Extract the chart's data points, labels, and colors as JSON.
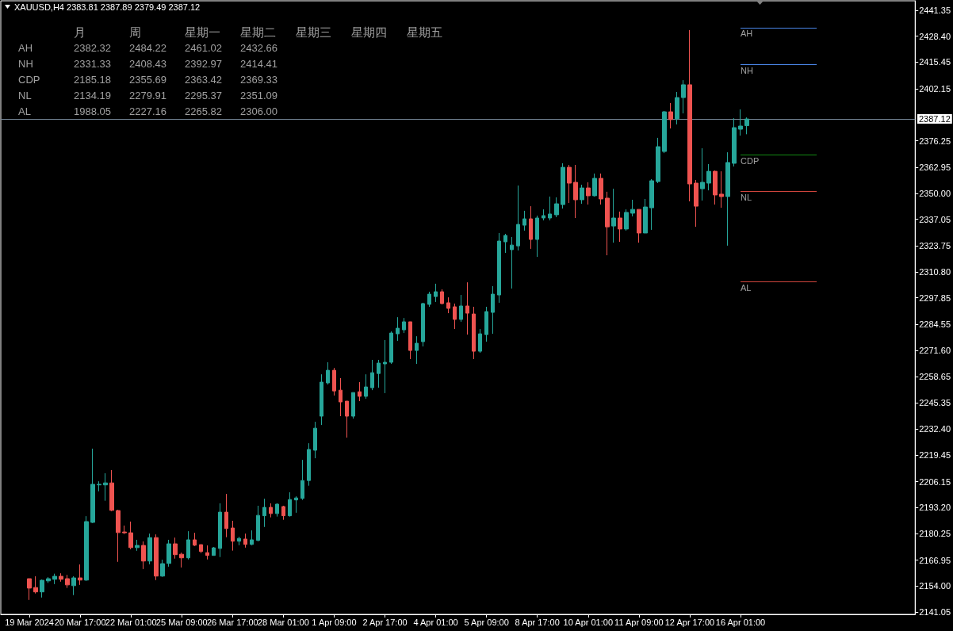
{
  "chart_data": {
    "type": "candlestick",
    "title": "XAUUSD,H4 2383.81 2387.89 2379.49 2387.12",
    "categories": [
      "19 Mar 2024",
      null,
      null,
      null,
      null,
      null,
      null,
      null,
      "20 Mar 17:00",
      null,
      null,
      null,
      null,
      null,
      null,
      null,
      "22 Mar 01:00",
      null,
      null,
      null,
      null,
      null,
      null,
      null,
      "25 Mar 09:00",
      null,
      null,
      null,
      null,
      null,
      null,
      null,
      "26 Mar 17:00",
      null,
      null,
      null,
      null,
      null,
      null,
      null,
      "28 Mar 01:00",
      null,
      null,
      null,
      null,
      null,
      null,
      null,
      "1 Apr 09:00",
      null,
      null,
      null,
      null,
      null,
      null,
      null,
      "2 Apr 17:00",
      null,
      null,
      null,
      null,
      null,
      null,
      null,
      "4 Apr 01:00",
      null,
      null,
      null,
      null,
      null,
      null,
      null,
      "5 Apr 09:00",
      null,
      null,
      null,
      null,
      null,
      null,
      null,
      "8 Apr 17:00",
      null,
      null,
      null,
      null,
      null,
      null,
      null,
      "10 Apr 01:00",
      null,
      null,
      null,
      null,
      null,
      null,
      null,
      "11 Apr 09:00",
      null,
      null,
      null,
      null,
      null,
      null,
      null,
      "12 Apr 17:00",
      null,
      null,
      null,
      null,
      null,
      null,
      null,
      "16 Apr 01:00",
      null,
      null,
      null,
      null,
      null,
      null,
      null,
      null,
      null,
      null,
      null,
      null,
      null,
      null,
      null,
      null,
      null,
      null,
      null,
      null,
      null,
      null,
      null,
      null,
      null,
      null,
      null
    ],
    "ohlc": [
      [
        2157.7,
        2157.7,
        2147.1,
        2153.0
      ],
      [
        2153.3,
        2158.9,
        2150.3,
        2151.1
      ],
      [
        2151.1,
        2157.3,
        2148.3,
        2156.9
      ],
      [
        2156.6,
        2158.5,
        2155.6,
        2157.7
      ],
      [
        2157.4,
        2160.2,
        2155.0,
        2158.9
      ],
      [
        2158.9,
        2160.4,
        2156.2,
        2157.4
      ],
      [
        2157.7,
        2159.6,
        2153.1,
        2154.6
      ],
      [
        2154.2,
        2158.9,
        2149.5,
        2158.1
      ],
      [
        2158.1,
        2164.8,
        2154.6,
        2157.0
      ],
      [
        2157.0,
        2188.9,
        2156.6,
        2186.2
      ],
      [
        2185.8,
        2222.6,
        2185.5,
        2204.8
      ],
      [
        2204.5,
        2206.3,
        2201.3,
        2204.8
      ],
      [
        2204.5,
        2210.3,
        2196.6,
        2205.5
      ],
      [
        2205.5,
        2211.9,
        2191.4,
        2191.8
      ],
      [
        2191.7,
        2192.1,
        2166.1,
        2180.7
      ],
      [
        2181.0,
        2184.2,
        2180.0,
        2180.6
      ],
      [
        2180.6,
        2186.2,
        2172.4,
        2173.2
      ],
      [
        2173.2,
        2177.1,
        2171.6,
        2174.3
      ],
      [
        2174.3,
        2176.3,
        2162.5,
        2166.5
      ],
      [
        2166.5,
        2180.2,
        2164.9,
        2178.2
      ],
      [
        2178.2,
        2179.8,
        2157.0,
        2159.0
      ],
      [
        2159.0,
        2167.2,
        2158.6,
        2165.2
      ],
      [
        2165.3,
        2177.1,
        2163.7,
        2175.1
      ],
      [
        2175.1,
        2178.2,
        2167.7,
        2169.7
      ],
      [
        2169.9,
        2170.7,
        2163.3,
        2168.1
      ],
      [
        2168.1,
        2181.4,
        2167.3,
        2177.1
      ],
      [
        2177.1,
        2180.6,
        2174.0,
        2174.4
      ],
      [
        2174.7,
        2174.7,
        2170.5,
        2171.3
      ],
      [
        2170.7,
        2174.3,
        2167.3,
        2169.3
      ],
      [
        2169.3,
        2173.5,
        2169.3,
        2173.1
      ],
      [
        2172.8,
        2195.3,
        2168.5,
        2190.9
      ],
      [
        2190.9,
        2200.0,
        2178.4,
        2182.7
      ],
      [
        2183.0,
        2186.6,
        2171.7,
        2176.4
      ],
      [
        2176.4,
        2178.6,
        2174.4,
        2177.8
      ],
      [
        2177.5,
        2180.2,
        2173.2,
        2174.8
      ],
      [
        2174.8,
        2181.8,
        2174.4,
        2177.1
      ],
      [
        2176.8,
        2194.1,
        2176.4,
        2189.3
      ],
      [
        2189.1,
        2197.6,
        2183.5,
        2193.3
      ],
      [
        2193.3,
        2195.3,
        2188.3,
        2190.2
      ],
      [
        2190.2,
        2195.3,
        2188.7,
        2194.9
      ],
      [
        2193.7,
        2194.1,
        2187.1,
        2189.1
      ],
      [
        2189.1,
        2200.8,
        2188.7,
        2197.2
      ],
      [
        2197.0,
        2198.8,
        2190.6,
        2198.0
      ],
      [
        2197.8,
        2217.0,
        2197.0,
        2206.7
      ],
      [
        2206.7,
        2225.3,
        2204.1,
        2222.2
      ],
      [
        2221.8,
        2236.0,
        2217.8,
        2232.8
      ],
      [
        2238.8,
        2259.7,
        2234.4,
        2255.8
      ],
      [
        2255.4,
        2265.7,
        2254.6,
        2261.7
      ],
      [
        2261.7,
        2262.9,
        2249.1,
        2251.4
      ],
      [
        2251.8,
        2257.8,
        2238.8,
        2245.9
      ],
      [
        2246.3,
        2246.3,
        2228.1,
        2238.8
      ],
      [
        2238.8,
        2250.6,
        2237.6,
        2250.6
      ],
      [
        2251.0,
        2255.8,
        2246.3,
        2248.7
      ],
      [
        2248.7,
        2259.7,
        2247.5,
        2253.4
      ],
      [
        2253.0,
        2266.9,
        2251.8,
        2260.5
      ],
      [
        2260.1,
        2266.9,
        2253.0,
        2265.3
      ],
      [
        2264.9,
        2276.8,
        2250.3,
        2265.7
      ],
      [
        2265.7,
        2281.1,
        2264.9,
        2280.3
      ],
      [
        2279.9,
        2288.2,
        2276.4,
        2282.7
      ],
      [
        2281.9,
        2287.8,
        2280.3,
        2285.9
      ],
      [
        2285.9,
        2285.9,
        2267.3,
        2271.6
      ],
      [
        2271.6,
        2278.7,
        2264.9,
        2275.2
      ],
      [
        2276.0,
        2295.4,
        2273.6,
        2295.0
      ],
      [
        2294.6,
        2300.9,
        2293.4,
        2299.7
      ],
      [
        2298.5,
        2304.9,
        2295.8,
        2300.9
      ],
      [
        2300.9,
        2302.1,
        2294.6,
        2295.0
      ],
      [
        2295.4,
        2298.1,
        2290.2,
        2292.6
      ],
      [
        2293.4,
        2295.0,
        2282.3,
        2287.1
      ],
      [
        2287.1,
        2299.3,
        2285.9,
        2293.8
      ],
      [
        2293.8,
        2305.6,
        2279.5,
        2290.2
      ],
      [
        2289.8,
        2293.4,
        2267.3,
        2271.2
      ],
      [
        2271.2,
        2282.3,
        2270.4,
        2279.9
      ],
      [
        2279.5,
        2293.4,
        2276.0,
        2291.0
      ],
      [
        2290.6,
        2303.7,
        2279.9,
        2299.7
      ],
      [
        2299.3,
        2330.2,
        2295.4,
        2326.2
      ],
      [
        2325.8,
        2329.8,
        2320.3,
        2329.0
      ],
      [
        2321.9,
        2328.2,
        2302.5,
        2324.2
      ],
      [
        2323.8,
        2353.9,
        2321.5,
        2334.5
      ],
      [
        2334.1,
        2341.3,
        2331.4,
        2337.3
      ],
      [
        2337.3,
        2343.6,
        2322.3,
        2327.0
      ],
      [
        2327.0,
        2338.9,
        2318.3,
        2337.7
      ],
      [
        2337.7,
        2342.0,
        2336.5,
        2338.9
      ],
      [
        2337.7,
        2348.4,
        2336.5,
        2339.7
      ],
      [
        2339.3,
        2348.0,
        2338.1,
        2344.8
      ],
      [
        2344.4,
        2365.0,
        2342.4,
        2363.0
      ],
      [
        2363.0,
        2364.2,
        2345.2,
        2355.1
      ],
      [
        2355.5,
        2364.2,
        2337.7,
        2346.8
      ],
      [
        2346.8,
        2354.3,
        2344.8,
        2352.7
      ],
      [
        2352.7,
        2355.5,
        2344.4,
        2348.8
      ],
      [
        2348.8,
        2359.9,
        2348.4,
        2357.5
      ],
      [
        2357.5,
        2359.9,
        2344.4,
        2347.2
      ],
      [
        2347.6,
        2350.8,
        2319.1,
        2333.3
      ],
      [
        2333.7,
        2352.3,
        2325.4,
        2337.7
      ],
      [
        2337.7,
        2340.9,
        2325.8,
        2332.2
      ],
      [
        2332.2,
        2342.0,
        2331.4,
        2340.5
      ],
      [
        2340.1,
        2346.8,
        2338.5,
        2342.0
      ],
      [
        2342.0,
        2342.0,
        2325.4,
        2330.2
      ],
      [
        2330.2,
        2347.2,
        2330.2,
        2343.2
      ],
      [
        2342.8,
        2357.1,
        2331.8,
        2356.3
      ],
      [
        2355.9,
        2377.7,
        2355.1,
        2373.3
      ],
      [
        2370.9,
        2391.1,
        2370.1,
        2390.7
      ],
      [
        2390.7,
        2395.1,
        2382.4,
        2386.8
      ],
      [
        2387.2,
        2400.6,
        2384.4,
        2397.8
      ],
      [
        2397.8,
        2406.5,
        2389.9,
        2404.2
      ],
      [
        2404.2,
        2431.5,
        2346.0,
        2354.7
      ],
      [
        2355.1,
        2356.7,
        2333.3,
        2343.6
      ],
      [
        2352.3,
        2372.5,
        2346.4,
        2355.5
      ],
      [
        2355.1,
        2364.6,
        2351.5,
        2361.0
      ],
      [
        2361.0,
        2361.4,
        2344.4,
        2349.2
      ],
      [
        2349.6,
        2361.0,
        2342.8,
        2348.4
      ],
      [
        2348.4,
        2370.5,
        2323.9,
        2365.4
      ],
      [
        2365.0,
        2387.5,
        2363.4,
        2382.8
      ],
      [
        2382.0,
        2391.9,
        2378.8,
        2383.6
      ],
      [
        2383.81,
        2387.89,
        2379.49,
        2387.12
      ],
      null,
      null,
      null,
      null,
      null,
      null,
      null,
      null,
      null,
      null,
      null,
      null,
      null,
      null,
      null,
      null,
      null,
      null,
      null,
      null,
      null,
      null,
      null,
      null,
      null,
      null
    ],
    "colors": [
      "#ef5350",
      "#ef5350",
      "#26a69a",
      "#26a69a",
      "#26a69a",
      "#ef5350",
      "#ef5350",
      "#26a69a",
      "#ef5350",
      "#26a69a",
      "#26a69a",
      "#26a69a",
      "#26a69a",
      "#ef5350",
      "#ef5350",
      "#ef5350",
      "#ef5350",
      "#26a69a",
      "#ef5350",
      "#26a69a",
      "#ef5350",
      "#26a69a",
      "#26a69a",
      "#ef5350",
      "#ef5350",
      "#26a69a",
      "#ef5350",
      "#ef5350",
      "#ef5350",
      "#26a69a",
      "#26a69a",
      "#ef5350",
      "#ef5350",
      "#26a69a",
      "#ef5350",
      "#26a69a",
      "#26a69a",
      "#26a69a",
      "#ef5350",
      "#26a69a",
      "#ef5350",
      "#26a69a",
      "#26a69a",
      "#26a69a",
      "#26a69a",
      "#26a69a",
      "#26a69a",
      "#26a69a",
      "#ef5350",
      "#ef5350",
      "#ef5350",
      "#26a69a",
      "#ef5350",
      "#26a69a",
      "#26a69a",
      "#26a69a",
      "#26a69a",
      "#26a69a",
      "#26a69a",
      "#26a69a",
      "#ef5350",
      "#26a69a",
      "#26a69a",
      "#26a69a",
      "#26a69a",
      "#ef5350",
      "#ef5350",
      "#ef5350",
      "#26a69a",
      "#ef5350",
      "#ef5350",
      "#26a69a",
      "#26a69a",
      "#26a69a",
      "#26a69a",
      "#26a69a",
      "#26a69a",
      "#26a69a",
      "#26a69a",
      "#ef5350",
      "#26a69a",
      "#26a69a",
      "#26a69a",
      "#26a69a",
      "#26a69a",
      "#ef5350",
      "#ef5350",
      "#26a69a",
      "#ef5350",
      "#26a69a",
      "#ef5350",
      "#ef5350",
      "#26a69a",
      "#ef5350",
      "#26a69a",
      "#26a69a",
      "#ef5350",
      "#26a69a",
      "#26a69a",
      "#26a69a",
      "#26a69a",
      "#ef5350",
      "#26a69a",
      "#26a69a",
      "#ef5350",
      "#ef5350",
      "#26a69a",
      "#26a69a",
      "#ef5350",
      "#ef5350",
      "#26a69a",
      "#26a69a",
      "#26a69a",
      "#26a69a",
      null,
      null,
      null,
      null,
      null,
      null,
      null,
      null,
      null,
      null,
      null,
      null,
      null,
      null,
      null,
      null,
      null,
      null,
      null,
      null,
      null,
      null,
      null,
      null,
      null,
      null
    ],
    "ylim": [
      2139.9,
      2446.1
    ],
    "yticks": [
      2141.05,
      {
        "value": 2154,
        "label": "2154.00"
      },
      2166.95,
      2180.25,
      {
        "value": 2193.2,
        "label": "2193.20"
      },
      2206.15,
      2219.45,
      {
        "value": 2232.4,
        "label": "2232.40"
      },
      2245.35,
      2258.65,
      {
        "value": 2271.6,
        "label": "2271.60"
      },
      2284.55,
      2297.85,
      {
        "value": 2310.8,
        "label": "2310.80"
      },
      2323.75,
      2337.05,
      {
        "value": 2350,
        "label": "2350.00"
      },
      2362.95,
      2376.25,
      2402.15,
      2415.45,
      {
        "value": 2428.4,
        "label": "2428.40"
      },
      2441.35
    ],
    "ref_lines": [
      {
        "axis": "y",
        "value": 2387.12,
        "label": "2387.12",
        "color": "#778899"
      },
      {
        "axis": "y",
        "value": 2432.66,
        "label": "AH",
        "color": "#4a86e8"
      },
      {
        "axis": "y",
        "value": 2414.41,
        "label": "NH",
        "color": "#4a86e8"
      },
      {
        "axis": "y",
        "value": 2369.33,
        "label": "CDP",
        "color": "#138a13"
      },
      {
        "axis": "y",
        "value": 2351.09,
        "label": "NL",
        "color": "#d0453d"
      },
      {
        "axis": "y",
        "value": 2306.0,
        "label": "AL",
        "color": "#d0453d"
      }
    ],
    "annotations": [
      "\t月\t周\t星期一\t星期二\t星期三\t星期四\t星期五",
      "AH\t2382.32\t2484.22\t2461.02\t2432.66",
      "NH\t2331.33\t2408.43\t2392.97\t2414.41",
      "CDP\t2185.18\t2355.69\t2363.42\t2369.33",
      "NL\t2134.19\t2279.91\t2295.37\t2351.09",
      "AL\t1988.05\t2227.16\t2265.82\t2306.00"
    ]
  }
}
